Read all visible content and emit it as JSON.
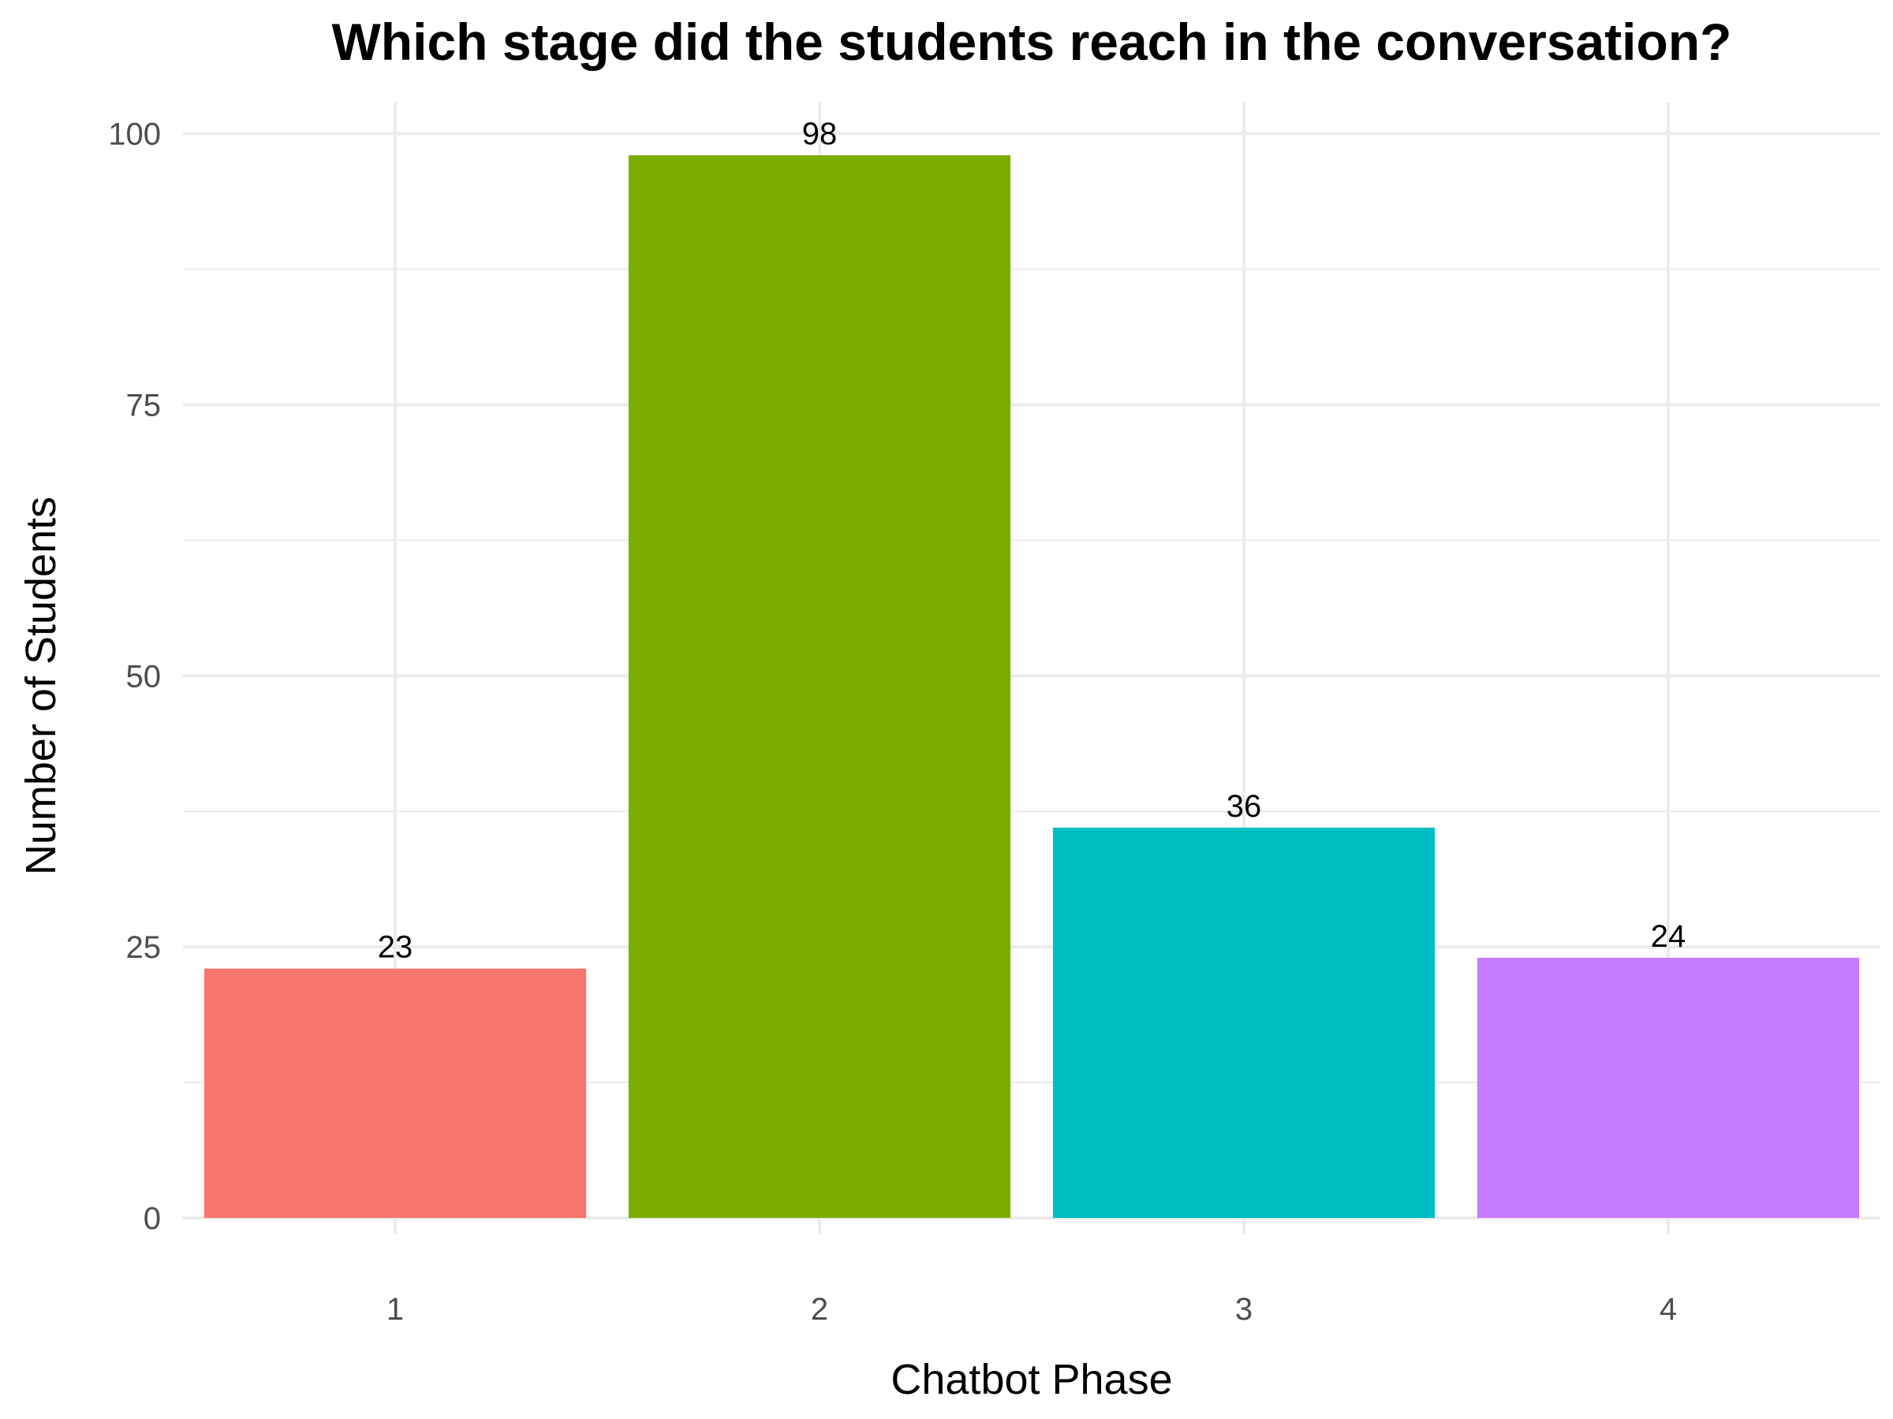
{
  "chart_data": {
    "type": "bar",
    "title": "Which stage did the students reach in the conversation?",
    "xlabel": "Chatbot Phase",
    "ylabel": "Number of Students",
    "categories": [
      "1",
      "2",
      "3",
      "4"
    ],
    "values": [
      23,
      98,
      36,
      24
    ],
    "data_labels": [
      "23",
      "98",
      "36",
      "24"
    ],
    "colors": [
      "#F8766D",
      "#7CAE00",
      "#00BFC4",
      "#C77CFF"
    ],
    "ylim": [
      0,
      100
    ],
    "yticks": [
      0,
      25,
      50,
      75,
      100
    ],
    "ytick_labels": [
      "0",
      "25",
      "50",
      "75",
      "100"
    ],
    "grid": true,
    "legend": "none"
  }
}
